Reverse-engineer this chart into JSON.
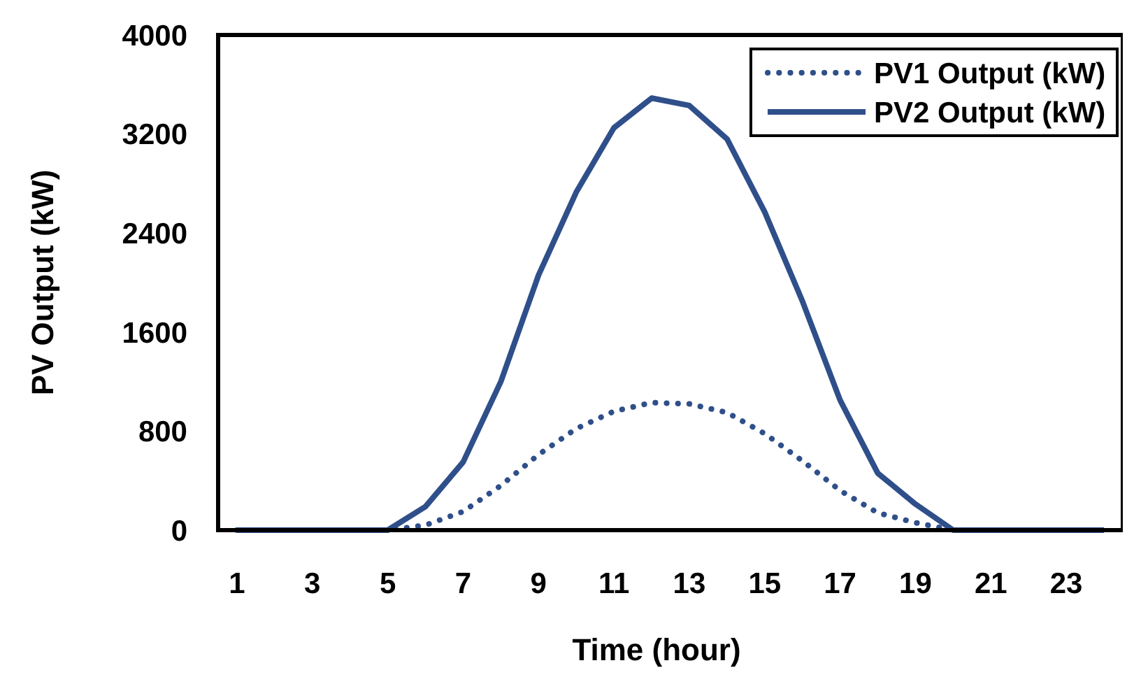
{
  "chart_data": {
    "type": "line",
    "xlabel": "Time (hour)",
    "ylabel": "PV Output (kW)",
    "x": [
      1,
      2,
      3,
      4,
      5,
      6,
      7,
      8,
      9,
      10,
      11,
      12,
      13,
      14,
      15,
      16,
      17,
      18,
      19,
      20,
      21,
      22,
      23,
      24
    ],
    "xlim": [
      0.5,
      24.5
    ],
    "xticks": [
      1,
      3,
      5,
      7,
      9,
      11,
      13,
      15,
      17,
      19,
      21,
      23
    ],
    "ylim": [
      0,
      4000
    ],
    "yticks": [
      0,
      800,
      1600,
      2400,
      3200,
      4000
    ],
    "grid": false,
    "legend": "top right",
    "marker": "none",
    "series": [
      {
        "name": "PV1 Output (kW)",
        "color": "#2f4f8a",
        "line_style": "dotted",
        "values": [
          0,
          0,
          0,
          0,
          0,
          40,
          150,
          360,
          610,
          820,
          960,
          1030,
          1020,
          950,
          780,
          560,
          320,
          140,
          60,
          0,
          0,
          0,
          0,
          0
        ]
      },
      {
        "name": "PV2 Output (kW)",
        "color": "#2f4f8a",
        "line_style": "solid",
        "values": [
          0,
          0,
          0,
          0,
          0,
          190,
          550,
          1200,
          2060,
          2730,
          3250,
          3490,
          3430,
          3160,
          2570,
          1850,
          1050,
          460,
          210,
          0,
          0,
          0,
          0,
          0
        ]
      }
    ]
  }
}
